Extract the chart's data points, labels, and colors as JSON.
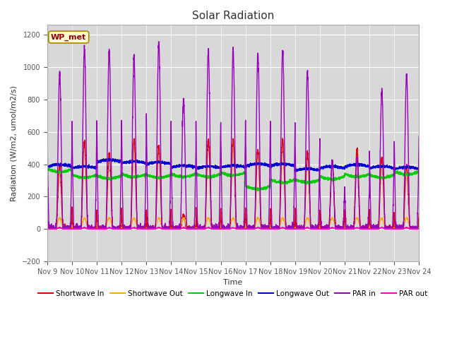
{
  "title": "Solar Radiation",
  "ylabel": "Radiation (W/m2, umol/m2/s)",
  "xlabel": "Time",
  "annotation": "WP_met",
  "ylim": [
    -200,
    1260
  ],
  "yticks": [
    -200,
    0,
    200,
    400,
    600,
    800,
    1000,
    1200
  ],
  "fig_bg_color": "#ffffff",
  "plot_bg_color": "#d8d8d8",
  "series": {
    "Shortwave In": {
      "color": "#dd0000",
      "lw": 1.0
    },
    "Shortwave Out": {
      "color": "#ffaa00",
      "lw": 1.0
    },
    "Longwave In": {
      "color": "#00cc00",
      "lw": 1.0
    },
    "Longwave Out": {
      "color": "#0000cc",
      "lw": 1.0
    },
    "PAR in": {
      "color": "#9900bb",
      "lw": 1.0
    },
    "PAR out": {
      "color": "#ff00bb",
      "lw": 1.0
    }
  },
  "n_days": 15,
  "start_day": 9,
  "samples_per_day": 288
}
